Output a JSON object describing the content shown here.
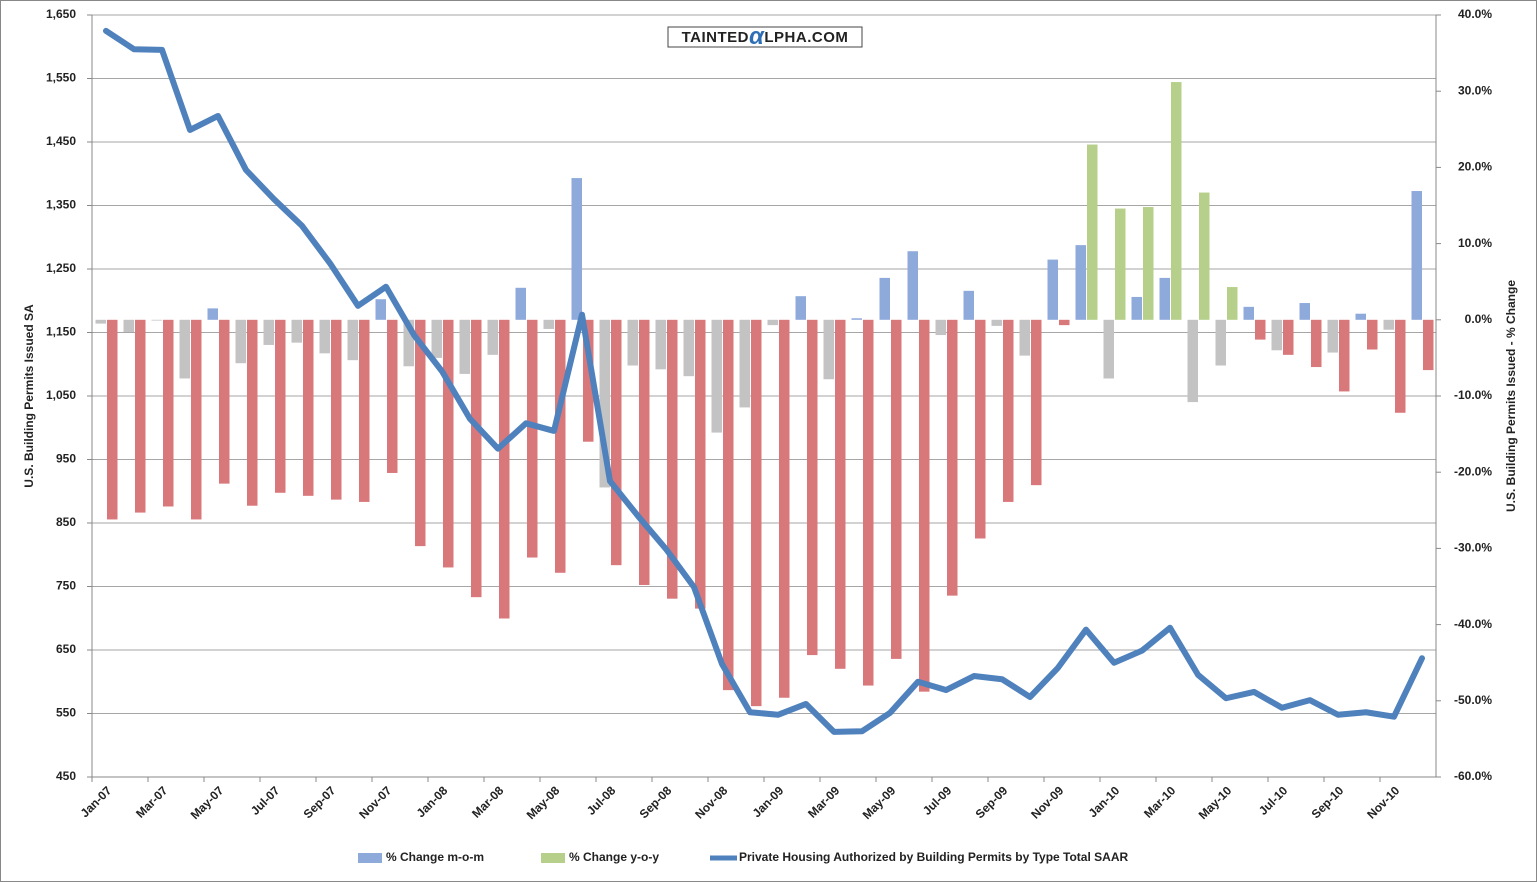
{
  "chart_data": {
    "type": "combo",
    "watermark": [
      "TAINTED",
      "α",
      "LPHA.COM"
    ],
    "y_label": "U.S. Building Permits Issued SA",
    "y2_label": "U.S. Building Permits Issued - % Change",
    "grid": true,
    "legend": "bottom",
    "categories": [
      "Jan-07",
      null,
      "Mar-07",
      null,
      "May-07",
      null,
      "Jul-07",
      null,
      "Sep-07",
      null,
      "Nov-07",
      null,
      "Jan-08",
      null,
      "Mar-08",
      null,
      "May-08",
      null,
      "Jul-08",
      null,
      "Sep-08",
      null,
      "Nov-08",
      null,
      "Jan-09",
      null,
      "Mar-09",
      null,
      "May-09",
      null,
      "Jul-09",
      null,
      "Sep-09",
      null,
      "Nov-09",
      null,
      "Jan-10",
      null,
      "Mar-10",
      null,
      "May-10",
      null,
      "Jul-10",
      null,
      "Sep-10",
      null,
      "Nov-10",
      null
    ],
    "ylim": [
      450,
      1650
    ],
    "yticks": [
      450,
      550,
      650,
      750,
      850,
      950,
      {
        "value": 1050,
        "label": "1,050"
      },
      {
        "value": 1150,
        "label": "1,150"
      },
      {
        "value": 1250,
        "label": "1,250"
      },
      {
        "value": 1350,
        "label": "1,350"
      },
      {
        "value": 1450,
        "label": "1,450"
      },
      {
        "value": 1550,
        "label": "1,550"
      },
      {
        "value": 1650,
        "label": "1,650"
      }
    ],
    "y2lim": [
      -60,
      40
    ],
    "y2ticks": [
      {
        "value": -60,
        "label": "-60.0%"
      },
      {
        "value": -50,
        "label": "-50.0%"
      },
      {
        "value": -40,
        "label": "-40.0%"
      },
      {
        "value": -30,
        "label": "-30.0%"
      },
      {
        "value": -20,
        "label": "-20.0%"
      },
      {
        "value": -10,
        "label": "-10.0%"
      },
      {
        "value": 0,
        "label": "0.0%"
      },
      {
        "value": 10,
        "label": "10.0%"
      },
      {
        "value": 20,
        "label": "20.0%"
      },
      {
        "value": 30,
        "label": "30.0%"
      },
      {
        "value": 40,
        "label": "40.0%"
      }
    ],
    "series": [
      {
        "name": "% Change m-o-m",
        "type": "bar",
        "axis": "y2",
        "color": "#8eaadb",
        "negative_color": "#c3c3c3",
        "values": [
          -0.5,
          -1.6,
          -0.1,
          -7.7,
          1.5,
          -5.7,
          -3.3,
          -3.0,
          -4.4,
          -5.3,
          2.7,
          -6.1,
          -5.0,
          -7.1,
          -4.6,
          4.2,
          -1.2,
          18.6,
          -22.0,
          -6.0,
          -6.5,
          -7.4,
          -14.8,
          -11.5,
          -0.7,
          3.1,
          -7.8,
          0.2,
          5.5,
          9.0,
          -2.0,
          3.8,
          -0.8,
          -4.7,
          7.9,
          9.8,
          -7.7,
          3.0,
          5.5,
          -10.8,
          -6.0,
          1.7,
          -4.0,
          2.2,
          -4.3,
          0.8,
          -1.3,
          16.9
        ]
      },
      {
        "name": "% Change y-o-y",
        "type": "bar",
        "axis": "y2",
        "color": "#b6d08c",
        "negative_color": "#d9787b",
        "values": [
          -26.2,
          -25.3,
          -24.5,
          -26.2,
          -21.5,
          -24.4,
          -22.7,
          -23.1,
          -23.6,
          -23.9,
          -20.1,
          -29.7,
          -32.5,
          -36.4,
          -39.2,
          -31.2,
          -33.2,
          -16.0,
          -32.2,
          -34.8,
          -36.6,
          -37.9,
          -48.6,
          -50.7,
          -49.6,
          -44.0,
          -45.8,
          -48.0,
          -44.5,
          -48.8,
          -36.2,
          -28.7,
          -23.9,
          -21.7,
          -0.7,
          23.0,
          14.6,
          14.8,
          31.2,
          16.7,
          4.3,
          -2.6,
          -4.6,
          -6.2,
          -9.4,
          -3.9,
          -12.2,
          -6.6
        ]
      },
      {
        "name": "Private Housing Authorized by Building Permits by Type Total SAAR",
        "type": "line",
        "color": "#4f81bd",
        "values": [
          1625,
          1596,
          1595,
          1469,
          1491,
          1406,
          1360,
          1318,
          1259,
          1192,
          1222,
          1146,
          1089,
          1014,
          967,
          1007,
          995,
          1178,
          916,
          861,
          809,
          749,
          628,
          552,
          548,
          565,
          521,
          522,
          551,
          600,
          587,
          609,
          604,
          576,
          622,
          682,
          630,
          649,
          685,
          611,
          574,
          584,
          559,
          571,
          548,
          552,
          545,
          637
        ]
      }
    ]
  }
}
